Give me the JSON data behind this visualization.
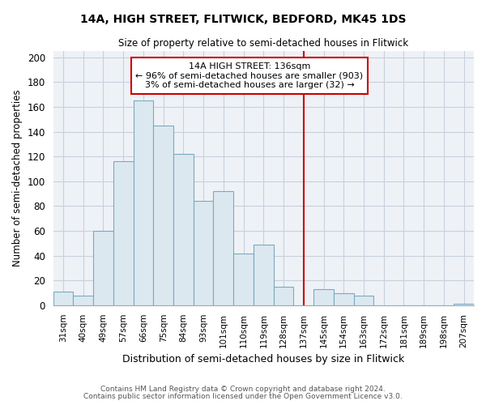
{
  "title": "14A, HIGH STREET, FLITWICK, BEDFORD, MK45 1DS",
  "subtitle": "Size of property relative to semi-detached houses in Flitwick",
  "xlabel": "Distribution of semi-detached houses by size in Flitwick",
  "ylabel": "Number of semi-detached properties",
  "footer_line1": "Contains HM Land Registry data © Crown copyright and database right 2024.",
  "footer_line2": "Contains public sector information licensed under the Open Government Licence v3.0.",
  "bin_labels": [
    "31sqm",
    "40sqm",
    "49sqm",
    "57sqm",
    "66sqm",
    "75sqm",
    "84sqm",
    "93sqm",
    "101sqm",
    "110sqm",
    "119sqm",
    "128sqm",
    "137sqm",
    "145sqm",
    "154sqm",
    "163sqm",
    "172sqm",
    "181sqm",
    "189sqm",
    "198sqm",
    "207sqm"
  ],
  "bar_values": [
    11,
    8,
    60,
    116,
    165,
    145,
    122,
    84,
    92,
    42,
    49,
    15,
    0,
    13,
    10,
    8,
    0,
    0,
    0,
    0,
    1
  ],
  "bar_color": "#dce8f0",
  "bar_edge_color": "#7aaabf",
  "vline_x": 12,
  "vline_color": "#cc0000",
  "annotation_title": "14A HIGH STREET: 136sqm",
  "annotation_line1": "← 96% of semi-detached houses are smaller (903)",
  "annotation_line2": "3% of semi-detached houses are larger (32) →",
  "annotation_box_color": "#ffffff",
  "annotation_border_color": "#cc0000",
  "ylim": [
    0,
    205
  ],
  "yticks": [
    0,
    20,
    40,
    60,
    80,
    100,
    120,
    140,
    160,
    180,
    200
  ],
  "bg_color": "#ffffff",
  "plot_bg_color": "#eef2f7",
  "grid_color": "#c8d0dc"
}
